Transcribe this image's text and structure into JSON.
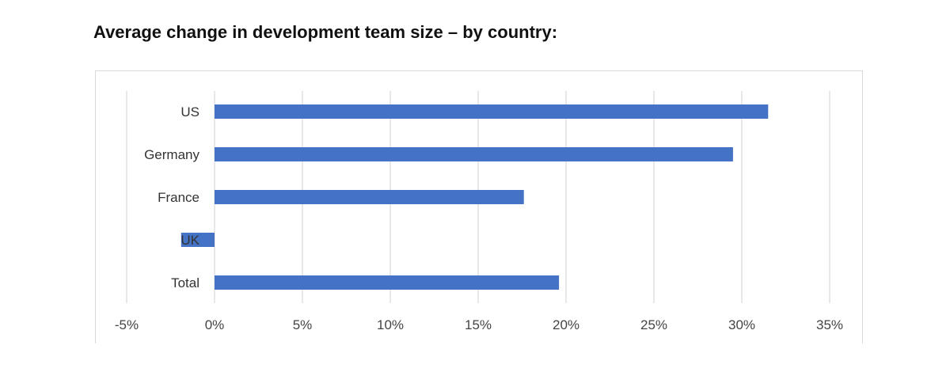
{
  "page": {
    "title": "Average change in development team size – by country:"
  },
  "chart_data": {
    "type": "bar",
    "orientation": "horizontal",
    "title": "Average change in development team size – by country:",
    "categories": [
      "US",
      "Germany",
      "France",
      "UK",
      "Total"
    ],
    "values": [
      31.5,
      29.5,
      17.6,
      -1.9,
      19.6
    ],
    "value_unit": "%",
    "xlim": [
      -5,
      35
    ],
    "xticks": [
      -5,
      0,
      5,
      10,
      15,
      20,
      25,
      30,
      35
    ],
    "xtick_labels": [
      "-5%",
      "0%",
      "5%",
      "10%",
      "15%",
      "20%",
      "25%",
      "30%",
      "35%"
    ],
    "grid": "vertical",
    "bar_color": "#4472c4",
    "grid_color": "#d9d9d9"
  }
}
